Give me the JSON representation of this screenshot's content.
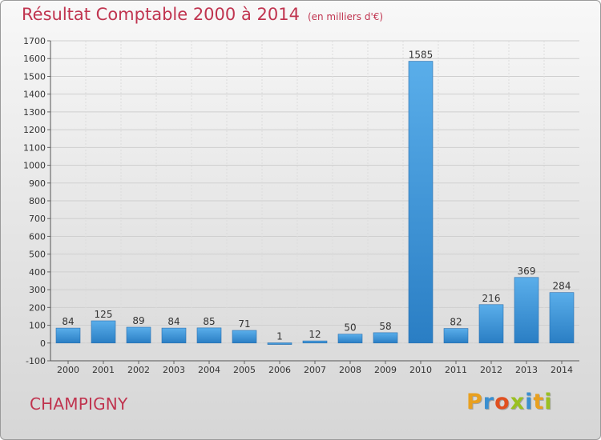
{
  "header": {
    "title": "Résultat Comptable 2000 à 2014",
    "subtitle": "(en milliers d'€)"
  },
  "footer": {
    "city": "CHAMPIGNY",
    "logo_letters": [
      "P",
      "r",
      "o",
      "x",
      "i",
      "t",
      "i"
    ],
    "logo_colors": [
      "#e8a020",
      "#3a8fd0",
      "#e05020",
      "#9ac020",
      "#3a8fd0",
      "#e8a020",
      "#9ac020"
    ]
  },
  "colors": {
    "title": "#c0344f",
    "bar_light": "#5aaeea",
    "bar_dark": "#2a7ec4",
    "grid": "#cfcfcf",
    "axis_text": "#333333"
  },
  "chart_data": {
    "type": "bar",
    "title": "Résultat Comptable 2000 à 2014",
    "subtitle": "(en milliers d'€)",
    "categories": [
      "2000",
      "2001",
      "2002",
      "2003",
      "2004",
      "2005",
      "2006",
      "2007",
      "2008",
      "2009",
      "2010",
      "2011",
      "2012",
      "2013",
      "2014"
    ],
    "values": [
      84,
      125,
      89,
      84,
      85,
      71,
      1,
      12,
      50,
      58,
      1585,
      82,
      216,
      369,
      284
    ],
    "ylim": [
      -100,
      1700
    ],
    "yticks": [
      -100,
      0,
      100,
      200,
      300,
      400,
      500,
      600,
      700,
      800,
      900,
      1000,
      1100,
      1200,
      1300,
      1400,
      1500,
      1600,
      1700
    ],
    "grid": true,
    "xlabel": "",
    "ylabel": ""
  }
}
